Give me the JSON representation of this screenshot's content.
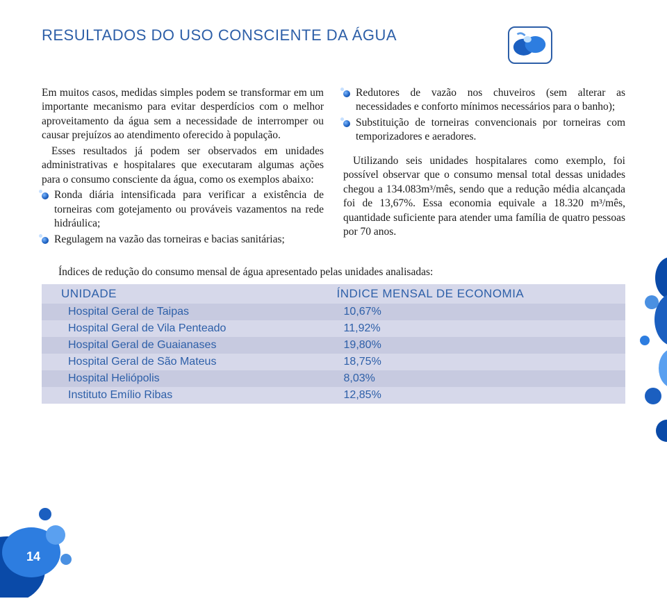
{
  "colors": {
    "primary_blue": "#2d5fa8",
    "dark_blue": "#0a3a80",
    "light_blue": "#7db8ff",
    "table_odd": "#d6d8ea",
    "table_even": "#c7cae0",
    "text": "#1a1a1a",
    "white": "#ffffff"
  },
  "header": {
    "title": "RESULTADOS DO USO CONSCIENTE DA ÁGUA"
  },
  "col1": {
    "p1": "Em muitos casos, medidas simples podem se transformar em um importante mecanismo para evitar desperdícios com o melhor aproveitamento da água sem a necessidade de interromper ou causar prejuízos ao atendimento oferecido à população.",
    "p2": "Esses resultados já podem ser observados em unidades administrativas e hospitalares que executaram algumas ações para o consumo consciente da água, como os exemplos abaixo:",
    "b1": "Ronda diária intensificada para verificar a existência de torneiras com gotejamento ou prováveis vazamentos na rede hidráulica;",
    "b2": "Regulagem na vazão das torneiras e bacias sanitárias;"
  },
  "col2": {
    "b1": "Redutores de vazão nos chuveiros (sem alterar as necessidades e conforto mínimos necessários para o banho);",
    "b2": "Substituição de torneiras convencionais por torneiras com temporizadores e aeradores.",
    "p1": "Utilizando seis unidades hospitalares como exemplo, foi possível observar que o consumo mensal total dessas unidades chegou a 134.083m³/mês, sendo que a redução média alcançada foi de 13,67%. Essa economia equivale a 18.320 m³/mês, quantidade suficiente para atender uma família de quatro pessoas por 70 anos."
  },
  "table": {
    "intro": "Índices de redução do consumo mensal de água apresentado pelas unidades analisadas:",
    "header_unit": "UNIDADE",
    "header_index": "ÍNDICE MENSAL DE ECONOMIA",
    "rows": [
      {
        "unit": "Hospital Geral de Taipas",
        "index": "10,67%"
      },
      {
        "unit": "Hospital Geral de Vila Penteado",
        "index": "11,92%"
      },
      {
        "unit": "Hospital Geral de Guaianases",
        "index": "19,80%"
      },
      {
        "unit": "Hospital Geral de São Mateus",
        "index": "18,75%"
      },
      {
        "unit": "Hospital Heliópolis",
        "index": "8,03%"
      },
      {
        "unit": "Instituto Emílio Ribas",
        "index": "12,85%"
      }
    ]
  },
  "page_number": "14"
}
